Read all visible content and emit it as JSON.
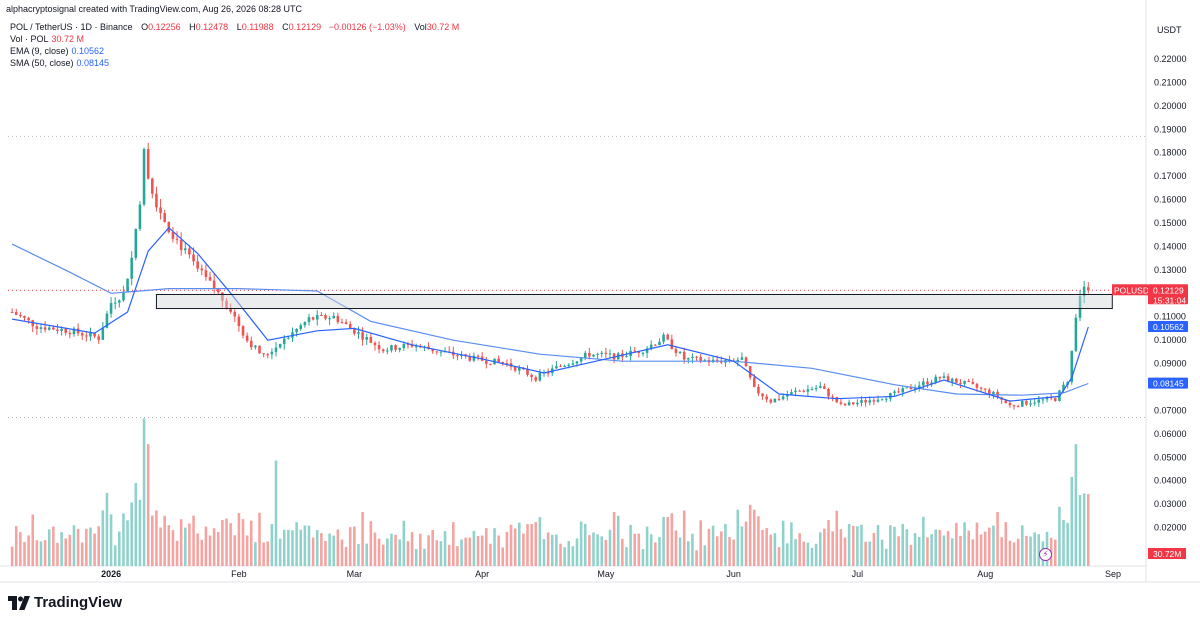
{
  "header": {
    "caption": "alphacryptosignal created with TradingView.com, Aug 26, 2026 08:28 UTC"
  },
  "legend": {
    "main": {
      "symbol": "POL / TetherUS · 1D · Binance",
      "o_key": "O",
      "o": "0.12256",
      "h_key": "H",
      "h": "0.12478",
      "l_key": "L",
      "l": "0.11988",
      "c_key": "C",
      "c": "0.12129",
      "chg": "−0.00126 (−1.03%)",
      "vol_key": "Vol",
      "vol": "30.72 M"
    },
    "vol": {
      "label": "Vol · POL",
      "value": "30.72 M"
    },
    "ema": {
      "label": "EMA (9, close)",
      "value": "0.10562"
    },
    "sma": {
      "label": "SMA (50, close)",
      "value": "0.08145"
    }
  },
  "colors": {
    "up": "#26a69a",
    "down": "#ef5350",
    "up_volume": "#8fd1cb",
    "down_volume": "#f5a3a0",
    "ema": "#2962ff",
    "sma": "#5b8def",
    "price_label": "#f23645",
    "grid_dotted": "#b2b5be"
  },
  "axis": {
    "currency": "USDT",
    "y_ticks": [
      "0.22000",
      "0.21000",
      "0.20000",
      "0.19000",
      "0.18000",
      "0.17000",
      "0.16000",
      "0.15000",
      "0.14000",
      "0.13000",
      "0.11000",
      "0.10000",
      "0.09000",
      "0.07000",
      "0.06000",
      "0.05000",
      "0.04000",
      "0.03000",
      "0.02000"
    ],
    "x_ticks": [
      "2026",
      "Feb",
      "Mar",
      "Apr",
      "May",
      "Jun",
      "Jul",
      "Aug",
      "Sep"
    ],
    "price_badges": {
      "symbol": "POLUSDT",
      "price": "0.12129",
      "countdown": "15:31:04",
      "ema": "0.10562",
      "sma": "0.08145",
      "volume": "30.72M"
    }
  },
  "brand": {
    "name": "TradingView"
  },
  "chart_data": {
    "type": "candlestick",
    "symbol": "POL / TetherUS",
    "interval": "1D",
    "exchange": "Binance",
    "ylim": [
      0.065,
      0.225
    ],
    "horizontal_levels": [
      0.187,
      0.067,
      0.12129
    ],
    "zone": {
      "top": 0.1195,
      "bottom": 0.1135,
      "start_x": "2026-01-12",
      "end_x": "2026-08-26"
    },
    "anchors": [
      {
        "x": "2025-12-08",
        "y": 0.112
      },
      {
        "x": "2025-12-14",
        "y": 0.106
      },
      {
        "x": "2025-12-22",
        "y": 0.104
      },
      {
        "x": "2025-12-29",
        "y": 0.101
      },
      {
        "x": "2026-01-01",
        "y": 0.116
      },
      {
        "x": "2026-01-04",
        "y": 0.12
      },
      {
        "x": "2026-01-06",
        "y": 0.135
      },
      {
        "x": "2026-01-08",
        "y": 0.16
      },
      {
        "x": "2026-01-09",
        "y": 0.18
      },
      {
        "x": "2026-01-11",
        "y": 0.163
      },
      {
        "x": "2026-01-13",
        "y": 0.155
      },
      {
        "x": "2026-01-15",
        "y": 0.148
      },
      {
        "x": "2026-01-18",
        "y": 0.14
      },
      {
        "x": "2026-01-22",
        "y": 0.13
      },
      {
        "x": "2026-01-26",
        "y": 0.122
      },
      {
        "x": "2026-01-30",
        "y": 0.113
      },
      {
        "x": "2026-02-03",
        "y": 0.1
      },
      {
        "x": "2026-02-07",
        "y": 0.093
      },
      {
        "x": "2026-02-12",
        "y": 0.1
      },
      {
        "x": "2026-02-18",
        "y": 0.109
      },
      {
        "x": "2026-02-24",
        "y": 0.11
      },
      {
        "x": "2026-03-01",
        "y": 0.104
      },
      {
        "x": "2026-03-08",
        "y": 0.096
      },
      {
        "x": "2026-03-15",
        "y": 0.098
      },
      {
        "x": "2026-03-22",
        "y": 0.095
      },
      {
        "x": "2026-03-30",
        "y": 0.092
      },
      {
        "x": "2026-04-07",
        "y": 0.09
      },
      {
        "x": "2026-04-14",
        "y": 0.084
      },
      {
        "x": "2026-04-20",
        "y": 0.089
      },
      {
        "x": "2026-04-27",
        "y": 0.094
      },
      {
        "x": "2026-05-04",
        "y": 0.093
      },
      {
        "x": "2026-05-10",
        "y": 0.096
      },
      {
        "x": "2026-05-15",
        "y": 0.101
      },
      {
        "x": "2026-05-20",
        "y": 0.092
      },
      {
        "x": "2026-05-27",
        "y": 0.091
      },
      {
        "x": "2026-06-03",
        "y": 0.092
      },
      {
        "x": "2026-06-06",
        "y": 0.079
      },
      {
        "x": "2026-06-10",
        "y": 0.074
      },
      {
        "x": "2026-06-16",
        "y": 0.078
      },
      {
        "x": "2026-06-22",
        "y": 0.08
      },
      {
        "x": "2026-06-27",
        "y": 0.072
      },
      {
        "x": "2026-07-03",
        "y": 0.074
      },
      {
        "x": "2026-07-10",
        "y": 0.077
      },
      {
        "x": "2026-07-16",
        "y": 0.081
      },
      {
        "x": "2026-07-21",
        "y": 0.084
      },
      {
        "x": "2026-07-28",
        "y": 0.081
      },
      {
        "x": "2026-08-03",
        "y": 0.077
      },
      {
        "x": "2026-08-07",
        "y": 0.072
      },
      {
        "x": "2026-08-13",
        "y": 0.074
      },
      {
        "x": "2026-08-18",
        "y": 0.075
      },
      {
        "x": "2026-08-21",
        "y": 0.083
      },
      {
        "x": "2026-08-22",
        "y": 0.095
      },
      {
        "x": "2026-08-23",
        "y": 0.11
      },
      {
        "x": "2026-08-24",
        "y": 0.118
      },
      {
        "x": "2026-08-25",
        "y": 0.123
      },
      {
        "x": "2026-08-26",
        "y": 0.1213
      }
    ],
    "ema": [
      {
        "x": "2025-12-08",
        "y": 0.109
      },
      {
        "x": "2025-12-28",
        "y": 0.103
      },
      {
        "x": "2026-01-05",
        "y": 0.112
      },
      {
        "x": "2026-01-10",
        "y": 0.138
      },
      {
        "x": "2026-01-15",
        "y": 0.148
      },
      {
        "x": "2026-01-22",
        "y": 0.137
      },
      {
        "x": "2026-01-30",
        "y": 0.12
      },
      {
        "x": "2026-02-08",
        "y": 0.1
      },
      {
        "x": "2026-02-20",
        "y": 0.104
      },
      {
        "x": "2026-03-01",
        "y": 0.105
      },
      {
        "x": "2026-03-15",
        "y": 0.098
      },
      {
        "x": "2026-04-01",
        "y": 0.092
      },
      {
        "x": "2026-04-16",
        "y": 0.086
      },
      {
        "x": "2026-05-01",
        "y": 0.092
      },
      {
        "x": "2026-05-16",
        "y": 0.098
      },
      {
        "x": "2026-06-01",
        "y": 0.091
      },
      {
        "x": "2026-06-12",
        "y": 0.077
      },
      {
        "x": "2026-06-26",
        "y": 0.075
      },
      {
        "x": "2026-07-10",
        "y": 0.076
      },
      {
        "x": "2026-07-22",
        "y": 0.083
      },
      {
        "x": "2026-08-07",
        "y": 0.074
      },
      {
        "x": "2026-08-19",
        "y": 0.076
      },
      {
        "x": "2026-08-22",
        "y": 0.084
      },
      {
        "x": "2026-08-26",
        "y": 0.1056
      }
    ],
    "sma": [
      {
        "x": "2025-12-08",
        "y": 0.141
      },
      {
        "x": "2025-12-22",
        "y": 0.129
      },
      {
        "x": "2026-01-01",
        "y": 0.12
      },
      {
        "x": "2026-01-15",
        "y": 0.122
      },
      {
        "x": "2026-02-01",
        "y": 0.122
      },
      {
        "x": "2026-02-20",
        "y": 0.121
      },
      {
        "x": "2026-03-05",
        "y": 0.108
      },
      {
        "x": "2026-03-25",
        "y": 0.1
      },
      {
        "x": "2026-04-15",
        "y": 0.094
      },
      {
        "x": "2026-05-05",
        "y": 0.091
      },
      {
        "x": "2026-06-01",
        "y": 0.091
      },
      {
        "x": "2026-06-20",
        "y": 0.088
      },
      {
        "x": "2026-07-10",
        "y": 0.081
      },
      {
        "x": "2026-07-25",
        "y": 0.077
      },
      {
        "x": "2026-08-10",
        "y": 0.0765
      },
      {
        "x": "2026-08-20",
        "y": 0.0775
      },
      {
        "x": "2026-08-26",
        "y": 0.0815
      }
    ],
    "volume_unit": "M",
    "volume_spikes": [
      {
        "x": "2026-01-09",
        "v": 63
      },
      {
        "x": "2026-01-10",
        "v": 52
      },
      {
        "x": "2026-02-10",
        "v": 45
      },
      {
        "x": "2026-06-02",
        "v": 24
      },
      {
        "x": "2026-08-23",
        "v": 52
      },
      {
        "x": "2026-08-22",
        "v": 38
      },
      {
        "x": "2026-08-25",
        "v": 31
      },
      {
        "x": "2026-08-26",
        "v": 30.72
      }
    ]
  }
}
